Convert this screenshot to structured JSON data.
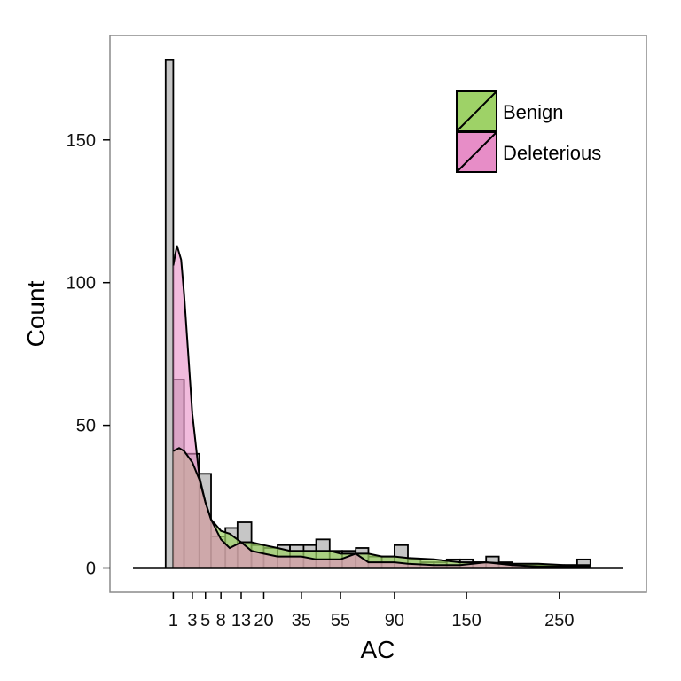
{
  "chart_data": {
    "type": "histogram",
    "xlabel": "AC",
    "ylabel": "Count",
    "x_scale": "sqrt",
    "x_ticks": [
      1,
      3,
      5,
      8,
      13,
      20,
      35,
      55,
      90,
      150,
      250
    ],
    "x_tick_labels": [
      "1",
      "3",
      "5",
      "8",
      "13",
      "20",
      "35",
      "55",
      "90",
      "150",
      "250"
    ],
    "xlim": [
      0,
      300
    ],
    "y_ticks": [
      0,
      50,
      100,
      150
    ],
    "ylim": [
      -9,
      180
    ],
    "grid": false,
    "legend": {
      "position": "top-right",
      "entries": [
        "Benign",
        "Deleterious"
      ]
    },
    "colors": {
      "bars": "#c6c6c6",
      "benign": "#9ed267",
      "deleterious": "#e78dc7",
      "overlap": "#b07a86"
    },
    "histogram_bins": [
      {
        "x0": 0.0,
        "x1": 0.5,
        "count": 0
      },
      {
        "x0": 0.5,
        "x1": 1.0,
        "count": 178
      },
      {
        "x0": 1.0,
        "x1": 2.0,
        "count": 66
      },
      {
        "x0": 2.0,
        "x1": 4.0,
        "count": 40
      },
      {
        "x0": 4.0,
        "x1": 6.0,
        "count": 33
      },
      {
        "x0": 6.0,
        "x1": 9.0,
        "count": 11
      },
      {
        "x0": 9.0,
        "x1": 12.0,
        "count": 14
      },
      {
        "x0": 12.0,
        "x1": 16.0,
        "count": 16
      },
      {
        "x0": 16.0,
        "x1": 20.0,
        "count": 8
      },
      {
        "x0": 20.0,
        "x1": 25.0,
        "count": 7
      },
      {
        "x0": 25.0,
        "x1": 30.0,
        "count": 8
      },
      {
        "x0": 30.0,
        "x1": 36.0,
        "count": 8
      },
      {
        "x0": 36.0,
        "x1": 42.0,
        "count": 8
      },
      {
        "x0": 42.0,
        "x1": 49.0,
        "count": 10
      },
      {
        "x0": 49.0,
        "x1": 56.0,
        "count": 6
      },
      {
        "x0": 56.0,
        "x1": 64.0,
        "count": 6
      },
      {
        "x0": 64.0,
        "x1": 72.0,
        "count": 7
      },
      {
        "x0": 72.0,
        "x1": 81.0,
        "count": 4
      },
      {
        "x0": 81.0,
        "x1": 90.0,
        "count": 4
      },
      {
        "x0": 90.0,
        "x1": 100.0,
        "count": 8
      },
      {
        "x0": 100.0,
        "x1": 110.0,
        "count": 3
      },
      {
        "x0": 110.0,
        "x1": 121.0,
        "count": 2
      },
      {
        "x0": 121.0,
        "x1": 132.0,
        "count": 2
      },
      {
        "x0": 132.0,
        "x1": 144.0,
        "count": 3
      },
      {
        "x0": 144.0,
        "x1": 156.0,
        "count": 3
      },
      {
        "x0": 156.0,
        "x1": 169.0,
        "count": 2
      },
      {
        "x0": 169.0,
        "x1": 182.0,
        "count": 4
      },
      {
        "x0": 182.0,
        "x1": 196.0,
        "count": 2
      },
      {
        "x0": 196.0,
        "x1": 210.0,
        "count": 1
      },
      {
        "x0": 210.0,
        "x1": 225.0,
        "count": 1
      },
      {
        "x0": 225.0,
        "x1": 240.0,
        "count": 1
      },
      {
        "x0": 240.0,
        "x1": 256.0,
        "count": 1
      },
      {
        "x0": 256.0,
        "x1": 272.0,
        "count": 1
      },
      {
        "x0": 272.0,
        "x1": 289.0,
        "count": 3
      }
    ],
    "series": [
      {
        "name": "Benign",
        "x": [
          1,
          1.5,
          2,
          3,
          4,
          5,
          6,
          8,
          10,
          13,
          16,
          20,
          25,
          30,
          35,
          42,
          49,
          55,
          64,
          72,
          81,
          90,
          100,
          121,
          144,
          169,
          196,
          225,
          256,
          289
        ],
        "y": [
          41,
          42,
          41,
          37,
          31,
          23,
          17,
          13,
          12,
          9,
          9,
          8,
          7,
          6,
          6,
          6,
          6,
          5,
          5,
          5,
          4,
          4,
          3.5,
          3,
          2,
          2,
          1.5,
          1.5,
          1,
          1
        ]
      },
      {
        "name": "Deleterious",
        "x": [
          1,
          1.3,
          1.7,
          2,
          3,
          4,
          5,
          6,
          8,
          10,
          13,
          16,
          20,
          25,
          30,
          35,
          42,
          49,
          55,
          64,
          72,
          81,
          90,
          100,
          121,
          144,
          169,
          196,
          225,
          256,
          289
        ],
        "y": [
          106,
          113,
          108,
          96,
          54,
          32,
          23,
          17,
          10,
          7,
          9,
          6,
          5,
          4,
          4,
          4,
          3,
          3,
          3,
          5,
          2,
          2,
          2,
          1.5,
          1,
          1,
          2,
          1,
          0.5,
          0.5,
          0.5
        ]
      }
    ]
  }
}
